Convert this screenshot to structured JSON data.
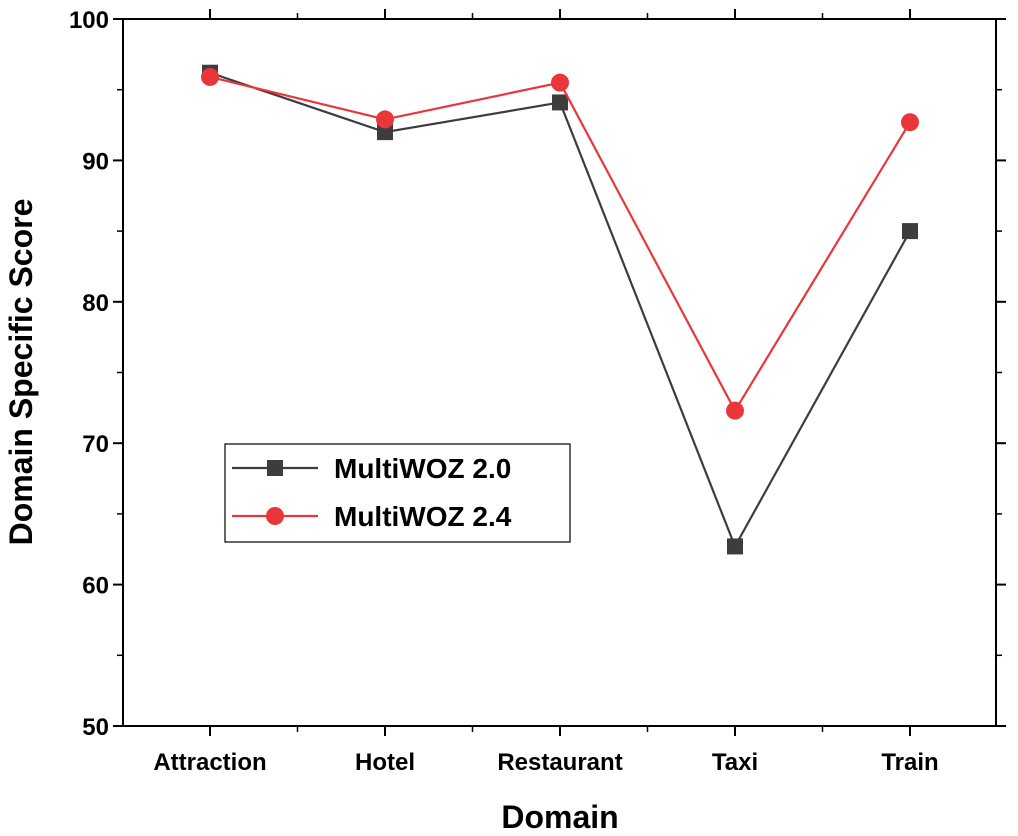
{
  "chart_data": {
    "type": "line",
    "categories": [
      "Attraction",
      "Hotel",
      "Restaurant",
      "Taxi",
      "Train"
    ],
    "series": [
      {
        "name": "MultiWOZ 2.0",
        "values": [
          96.2,
          92.0,
          94.1,
          62.7,
          85.0
        ],
        "color": "#3d3d3d",
        "marker": "square"
      },
      {
        "name": "MultiWOZ 2.4",
        "values": [
          95.9,
          92.9,
          95.5,
          72.3,
          92.7
        ],
        "color": "#e8363a",
        "marker": "circle"
      }
    ],
    "title": "",
    "xlabel": "Domain",
    "ylabel": "Domain Specific Score",
    "ylim": [
      50,
      100
    ],
    "yticks": [
      50,
      60,
      70,
      80,
      90,
      100
    ],
    "grid": false,
    "legend_position": "left-middle"
  }
}
